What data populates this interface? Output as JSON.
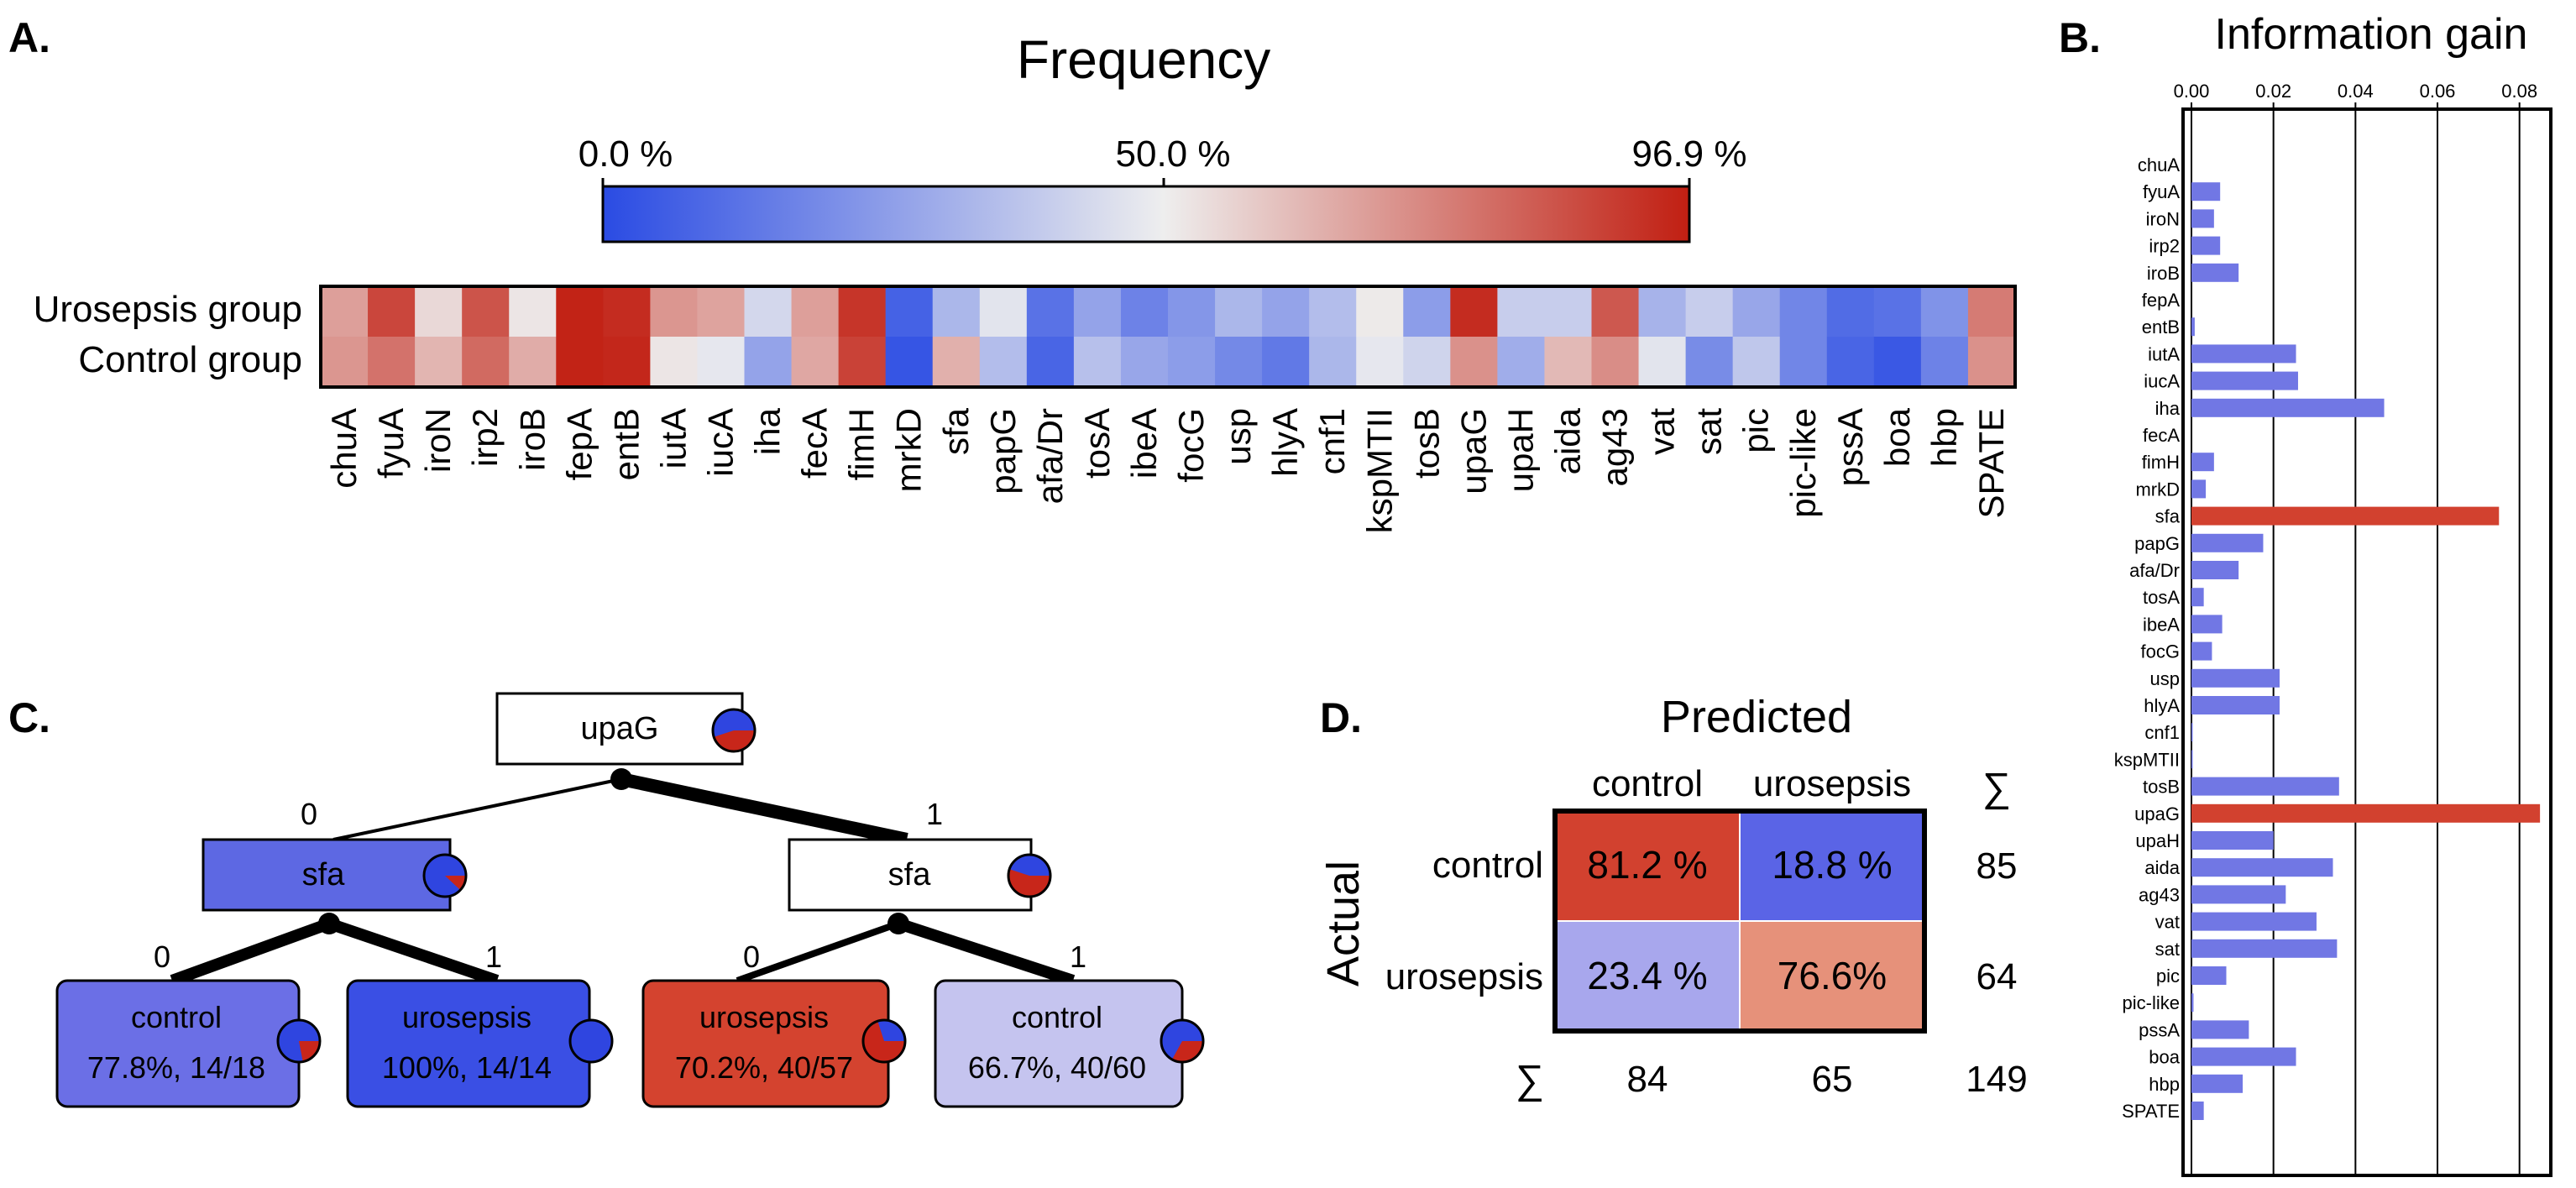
{
  "panels": {
    "a": "A.",
    "b": "B.",
    "c": "C.",
    "d": "D."
  },
  "chart_data": [
    {
      "type": "heatmap",
      "title": "Frequency",
      "colorbar_ticks": [
        "0.0 %",
        "50.0 %",
        "96.9 %"
      ],
      "colorbar_range": [
        0,
        96.9
      ],
      "colors": {
        "low": "#2a4be3",
        "mid": "#eeeeee",
        "high": "#c11f12"
      },
      "rows": [
        "Urosepsis group",
        "Control group"
      ],
      "columns": [
        "chuA",
        "fyuA",
        "iroN",
        "irp2",
        "iroB",
        "fepA",
        "entB",
        "iutA",
        "iucA",
        "iha",
        "fecA",
        "fimH",
        "mrkD",
        "sfa",
        "papG",
        "afa/Dr",
        "tosA",
        "ibeA",
        "focG",
        "usp",
        "hlyA",
        "cnf1",
        "kspMTII",
        "tosB",
        "upaG",
        "upaH",
        "aida",
        "ag43",
        "vat",
        "sat",
        "pic",
        "pic-like",
        "pssA",
        "boa",
        "hbp",
        "SPATE"
      ],
      "values": [
        [
          68,
          88,
          55,
          85,
          52,
          96,
          94,
          70,
          67,
          43,
          68,
          92,
          7,
          33,
          47,
          12,
          27,
          17,
          23,
          33,
          27,
          35,
          51,
          25,
          94,
          40,
          40,
          84,
          32,
          40,
          28,
          18,
          10,
          12,
          22,
          76
        ],
        [
          70,
          78,
          63,
          80,
          65,
          96,
          95,
          52,
          48,
          27,
          66,
          89,
          3,
          64,
          35,
          8,
          36,
          28,
          25,
          19,
          14,
          33,
          48,
          42,
          71,
          30,
          62,
          72,
          47,
          20,
          38,
          18,
          8,
          4,
          17,
          71
        ]
      ]
    },
    {
      "type": "bar",
      "orientation": "horizontal",
      "title": "Information gain",
      "xlim": [
        0,
        0.086
      ],
      "xticks": [
        "0.00",
        "0.02",
        "0.04",
        "0.06",
        "0.08"
      ],
      "categories": [
        "chuA",
        "fyuA",
        "iroN",
        "irp2",
        "iroB",
        "fepA",
        "entB",
        "iutA",
        "iucA",
        "iha",
        "fecA",
        "fimH",
        "mrkD",
        "sfa",
        "papG",
        "afa/Dr",
        "tosA",
        "ibeA",
        "focG",
        "usp",
        "hlyA",
        "cnf1",
        "kspMTII",
        "tosB",
        "upaG",
        "upaH",
        "aida",
        "ag43",
        "vat",
        "sat",
        "pic",
        "pic-like",
        "pssA",
        "boa",
        "hbp",
        "SPATE"
      ],
      "values": [
        0,
        0.007,
        0.0055,
        0.007,
        0.0115,
        0,
        0.0008,
        0.0255,
        0.026,
        0.047,
        0,
        0.0055,
        0.0035,
        0.075,
        0.0175,
        0.0115,
        0.003,
        0.0075,
        0.005,
        0.0215,
        0.0215,
        0.0003,
        0.0003,
        0.036,
        0.085,
        0.02,
        0.0345,
        0.023,
        0.0305,
        0.0355,
        0.0085,
        0.0005,
        0.014,
        0.0255,
        0.0125,
        0.003
      ],
      "highlighted": [
        "sfa",
        "upaG"
      ],
      "colors": {
        "bar": "#7177e4",
        "highlight": "#d2412f"
      }
    },
    {
      "type": "table",
      "title": "Predicted",
      "row_axis_label": "Actual",
      "col_labels": [
        "control",
        "urosepsis",
        "∑"
      ],
      "rows": [
        {
          "label": "control",
          "cells": [
            "81.2 %",
            "18.8 %"
          ],
          "values": [
            81.2,
            18.8
          ],
          "total": "85"
        },
        {
          "label": "urosepsis",
          "cells": [
            "23.4 %",
            "76.6%"
          ],
          "values": [
            23.4,
            76.6
          ],
          "total": "64"
        }
      ],
      "sum_label": "∑",
      "col_totals": [
        "84",
        "65",
        "149"
      ],
      "cell_colors": [
        "#d2412f",
        "#5a64e6",
        "#a8a7ed",
        "#e6917a"
      ]
    }
  ],
  "tree": {
    "root": {
      "label": "upaG",
      "red_fraction": 0.45
    },
    "branch_labels": [
      "0",
      "1",
      "0",
      "1",
      "0",
      "1"
    ],
    "internal": [
      {
        "label": "sfa",
        "red_fraction": 0.12
      },
      {
        "label": "sfa",
        "red_fraction": 0.55
      }
    ],
    "leaves": [
      {
        "label": "control",
        "stat": "77.8%, 14/18",
        "red_fraction": 0.22
      },
      {
        "label": "urosepsis",
        "stat": "100%, 14/14",
        "red_fraction": 0
      },
      {
        "label": "urosepsis",
        "stat": "70.2%, 40/57",
        "red_fraction": 0.7
      },
      {
        "label": "control",
        "stat": "66.7%, 40/60",
        "red_fraction": 0.33
      }
    ],
    "colors": {
      "red": "#c8261a",
      "blue": "#2f45e0",
      "leaf_fill": [
        "#6b6fe6",
        "#3a4fe4",
        "#d4432f",
        "#c5c4ef"
      ],
      "internal_fill": [
        "#5d68e3",
        "#ffffff"
      ]
    }
  }
}
